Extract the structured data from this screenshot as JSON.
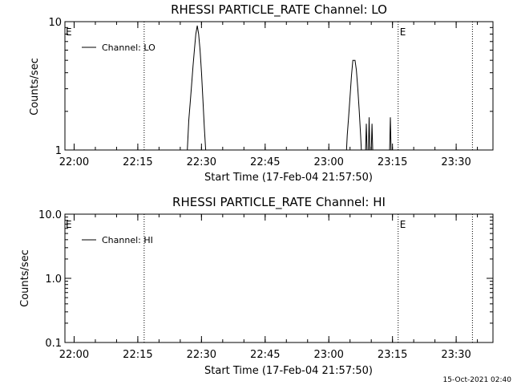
{
  "footer": {
    "timestamp": "15-Oct-2021 02:40"
  },
  "chart_data": [
    {
      "type": "line",
      "title": "RHESSI PARTICLE_RATE Channel: LO",
      "xlabel": "Start Time (17-Feb-04 21:57:50)",
      "ylabel": "Counts/sec",
      "xscale": "time",
      "yscale": "log",
      "xlim": [
        "21:57:50",
        "23:38:40"
      ],
      "ylim": [
        1,
        10
      ],
      "x_ticks": [
        "22:00",
        "22:15",
        "22:30",
        "22:45",
        "23:00",
        "23:15",
        "23:30"
      ],
      "y_ticks": [
        "1",
        "10"
      ],
      "y_tick_values": [
        1,
        10
      ],
      "legend": {
        "position": "top-left",
        "entries": [
          "Channel: LO"
        ]
      },
      "vertical_markers": [
        {
          "time": "22:16:30",
          "label": ""
        },
        {
          "time": "23:16:20",
          "label": "E"
        },
        {
          "time": "23:33:50",
          "label": ""
        }
      ],
      "left_label": "E",
      "series": [
        {
          "name": "Channel: LO",
          "points": [
            [
              "22:26:40",
              1
            ],
            [
              "22:26:50",
              1.3
            ],
            [
              "22:27:00",
              1.7
            ],
            [
              "22:27:20",
              2.3
            ],
            [
              "22:27:40",
              3.2
            ],
            [
              "22:28:00",
              4.5
            ],
            [
              "22:28:20",
              6.0
            ],
            [
              "22:28:40",
              8.0
            ],
            [
              "22:29:00",
              9.3
            ],
            [
              "22:29:20",
              8.0
            ],
            [
              "22:29:40",
              6.0
            ],
            [
              "22:30:00",
              4.0
            ],
            [
              "22:30:20",
              2.5
            ],
            [
              "22:30:40",
              1.5
            ],
            [
              "22:31:00",
              1
            ],
            [
              "23:04:10",
              1
            ],
            [
              "23:04:20",
              1.3
            ],
            [
              "23:04:40",
              1.8
            ],
            [
              "23:05:00",
              2.6
            ],
            [
              "23:05:20",
              3.8
            ],
            [
              "23:05:40",
              5.0
            ],
            [
              "23:06:10",
              5.0
            ],
            [
              "23:06:30",
              4.2
            ],
            [
              "23:06:50",
              3.0
            ],
            [
              "23:07:10",
              2.0
            ],
            [
              "23:07:30",
              1.3
            ],
            [
              "23:07:40",
              1
            ],
            [
              "23:08:40",
              1
            ],
            [
              "23:08:50",
              1.6
            ],
            [
              "23:09:00",
              1
            ],
            [
              "23:09:20",
              1
            ],
            [
              "23:09:30",
              1.8
            ],
            [
              "23:09:40",
              1
            ],
            [
              "23:10:00",
              1
            ],
            [
              "23:10:10",
              1.6
            ],
            [
              "23:10:20",
              1
            ],
            [
              "23:14:20",
              1
            ],
            [
              "23:14:30",
              1.8
            ],
            [
              "23:14:40",
              1
            ]
          ]
        }
      ]
    },
    {
      "type": "line",
      "title": "RHESSI PARTICLE_RATE Channel: HI",
      "xlabel": "Start Time (17-Feb-04 21:57:50)",
      "ylabel": "Counts/sec",
      "xscale": "time",
      "yscale": "log",
      "xlim": [
        "21:57:50",
        "23:38:40"
      ],
      "ylim": [
        0.1,
        10
      ],
      "x_ticks": [
        "22:00",
        "22:15",
        "22:30",
        "22:45",
        "23:00",
        "23:15",
        "23:30"
      ],
      "y_ticks": [
        "0.1",
        "1.0",
        "10.0"
      ],
      "y_tick_values": [
        0.1,
        1,
        10
      ],
      "legend": {
        "position": "top-left",
        "entries": [
          "Channel: HI"
        ]
      },
      "vertical_markers": [
        {
          "time": "22:16:30",
          "label": ""
        },
        {
          "time": "23:16:20",
          "label": "E"
        },
        {
          "time": "23:33:50",
          "label": ""
        }
      ],
      "left_label": "E",
      "series": [
        {
          "name": "Channel: HI",
          "points": []
        }
      ]
    }
  ]
}
